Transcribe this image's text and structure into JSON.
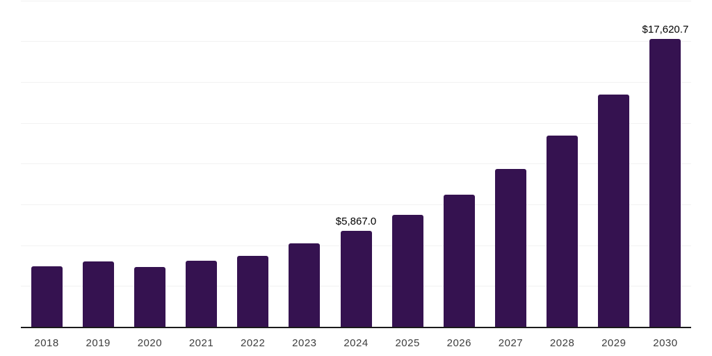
{
  "chart_data": {
    "type": "bar",
    "title": "",
    "xlabel": "",
    "ylabel": "",
    "categories": [
      "2018",
      "2019",
      "2020",
      "2021",
      "2022",
      "2023",
      "2024",
      "2025",
      "2026",
      "2027",
      "2028",
      "2029",
      "2030"
    ],
    "values": [
      3710,
      3990,
      3670,
      4060,
      4350,
      5120,
      5867.0,
      6870,
      8100,
      9690,
      11700,
      14230,
      17620.7
    ],
    "data_labels": [
      {
        "category": "2024",
        "text": "$5,867.0"
      },
      {
        "category": "2030",
        "text": "$17,620.7"
      }
    ],
    "ylim": [
      0,
      20000
    ],
    "gridline_step": 2500,
    "grid": "horizontal-only",
    "legend": "none",
    "y_tick_labels_shown": false
  },
  "style": {
    "bar_color": "#351250",
    "gridline_color": "#f2f2f2",
    "axis_line_color": "#1a1a1a",
    "x_tick_label_color": "#3d3d3d",
    "value_label_color": "#000000",
    "background_color": "#ffffff"
  }
}
